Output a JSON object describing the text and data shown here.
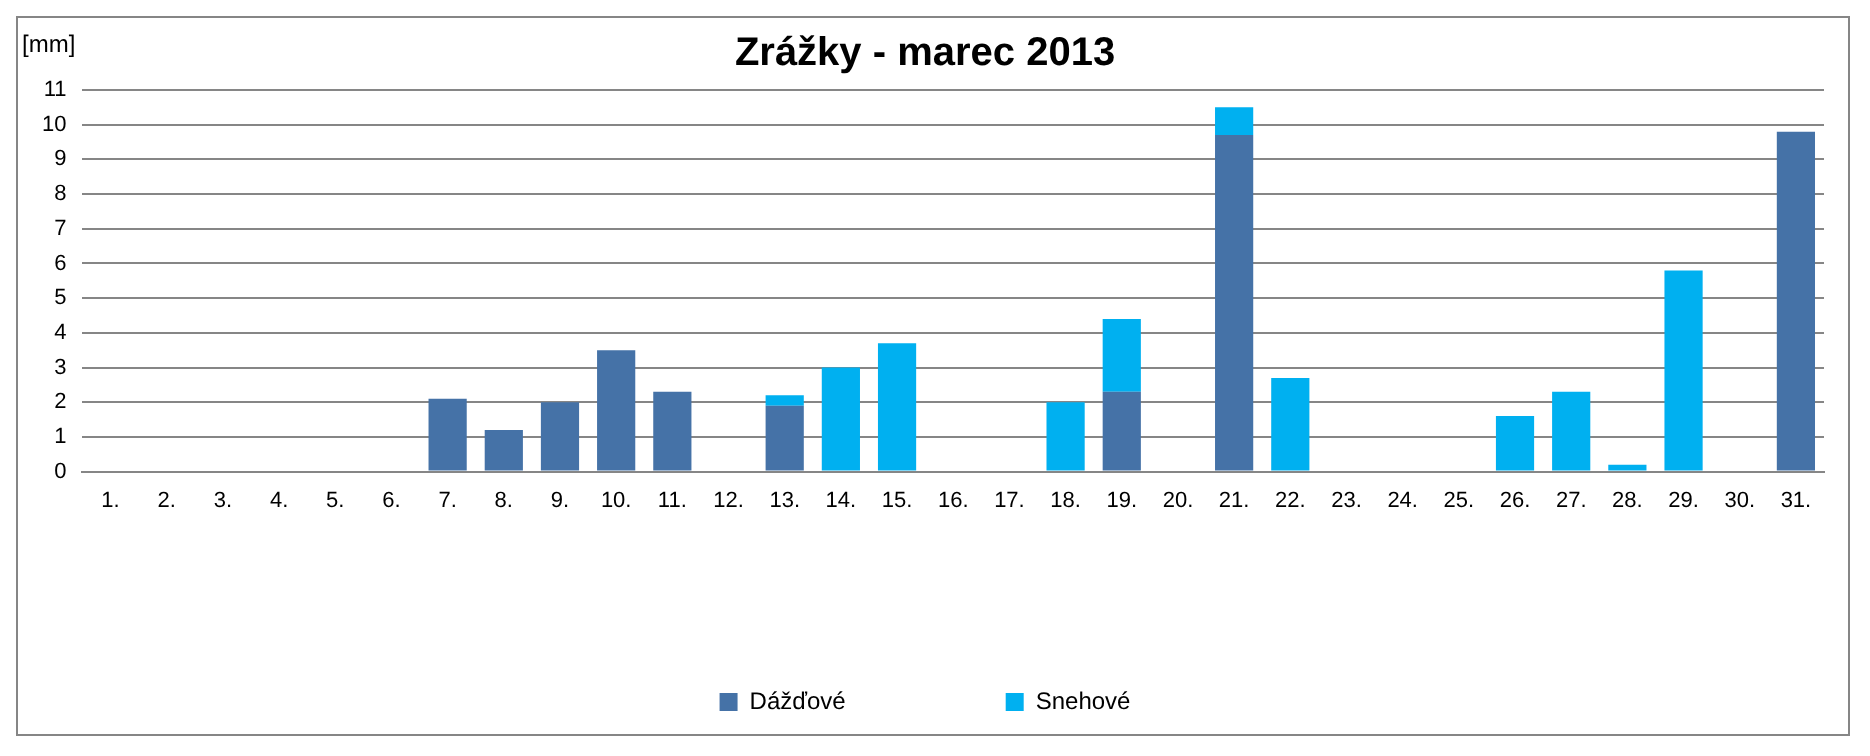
{
  "chart_data": {
    "type": "bar",
    "title": "Zrážky - marec 2013",
    "ylabel": "[mm]",
    "stacked": true,
    "categories": [
      "1.",
      "2.",
      "3.",
      "4.",
      "5.",
      "6.",
      "7.",
      "8.",
      "9.",
      "10.",
      "11.",
      "12.",
      "13.",
      "14.",
      "15.",
      "16.",
      "17.",
      "18.",
      "19.",
      "20.",
      "21.",
      "22.",
      "23.",
      "24.",
      "25.",
      "26.",
      "27.",
      "28.",
      "29.",
      "30.",
      "31."
    ],
    "series": [
      {
        "name": "Dážďové",
        "color": "#4572a7",
        "values": [
          0,
          0,
          0,
          0,
          0,
          0,
          2.1,
          1.2,
          2.0,
          3.5,
          2.3,
          0,
          1.9,
          0,
          0,
          0,
          0,
          0,
          2.3,
          0,
          9.7,
          0,
          0,
          0,
          0,
          0,
          0,
          0,
          0,
          0,
          9.8
        ]
      },
      {
        "name": "Snehové",
        "color": "#00b0f0",
        "values": [
          0,
          0,
          0,
          0,
          0,
          0,
          0,
          0,
          0,
          0,
          0,
          0,
          0.3,
          3.0,
          3.7,
          0,
          0,
          2.0,
          2.1,
          0,
          0.8,
          2.7,
          0,
          0,
          0,
          1.6,
          2.3,
          0.2,
          5.8,
          0,
          0
        ]
      }
    ],
    "ylim": [
      0,
      11
    ],
    "yticks": [
      0,
      1,
      2,
      3,
      4,
      5,
      6,
      7,
      8,
      9,
      10,
      11
    ],
    "grid": "y",
    "legend": "bottom"
  }
}
